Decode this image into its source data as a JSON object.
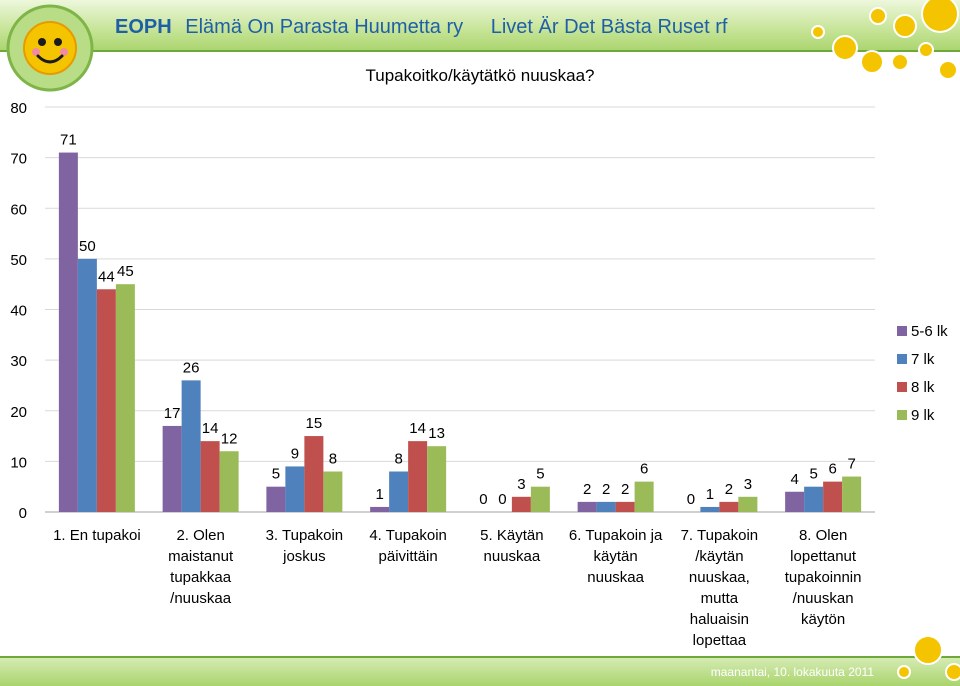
{
  "header": {
    "org_short": "EOPH",
    "org_fi": "Elämä On Parasta Huumetta ry",
    "org_sv": "Livet Är Det Bästa Ruset rf"
  },
  "footer": {
    "date": "maanantai, 10. lokakuuta 2011"
  },
  "colors": {
    "header_green": "#a9d46c",
    "header_text": "#1f5fa8",
    "bubble_yellow": "#f5c400"
  },
  "chart_data": {
    "type": "bar",
    "title": "Tupakoitko/käytätkö nuuskaa?",
    "categories": [
      [
        "1. En tupakoi"
      ],
      [
        "2. Olen",
        "maistanut",
        "tupakkaa",
        "/nuuskaa"
      ],
      [
        "3. Tupakoin",
        "joskus"
      ],
      [
        "4. Tupakoin",
        "päivittäin"
      ],
      [
        "5. Käytän",
        "nuuskaa"
      ],
      [
        "6. Tupakoin ja",
        "käytän",
        "nuuskaa"
      ],
      [
        "7. Tupakoin",
        "/käytän",
        "nuuskaa,",
        "mutta",
        "haluaisin",
        "lopettaa"
      ],
      [
        "8. Olen",
        "lopettanut",
        "tupakoinnin",
        "/nuuskan",
        "käytön"
      ]
    ],
    "series": [
      {
        "name": "5-6 lk",
        "color": "#8064a2",
        "values": [
          71,
          17,
          5,
          1,
          0,
          2,
          0,
          4
        ]
      },
      {
        "name": "7 lk",
        "color": "#4f81bd",
        "values": [
          50,
          26,
          9,
          8,
          0,
          2,
          1,
          5
        ]
      },
      {
        "name": "8 lk",
        "color": "#c0504d",
        "values": [
          44,
          14,
          15,
          14,
          3,
          2,
          2,
          6
        ]
      },
      {
        "name": "9 lk",
        "color": "#9bbb59",
        "values": [
          45,
          12,
          8,
          13,
          5,
          6,
          3,
          7
        ]
      }
    ],
    "ylim": [
      0,
      80
    ],
    "yticks": [
      0,
      10,
      20,
      30,
      40,
      50,
      60,
      70,
      80
    ],
    "grid": true,
    "legend": "right"
  }
}
